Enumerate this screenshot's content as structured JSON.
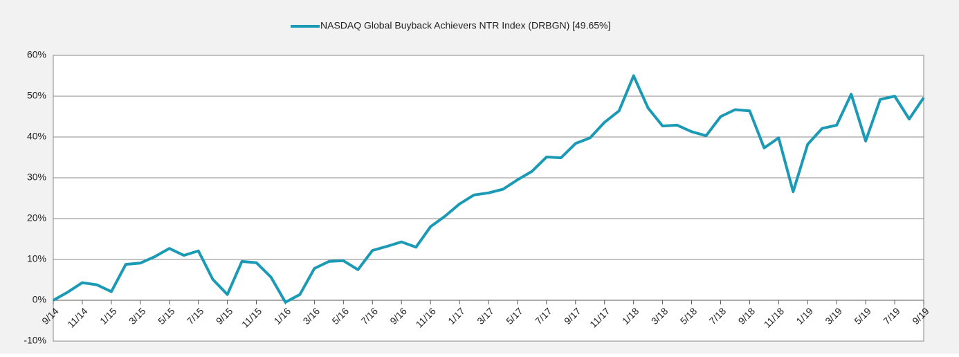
{
  "chart_data": {
    "type": "line",
    "categories": [
      "9/14",
      null,
      "11/14",
      null,
      "1/15",
      null,
      "3/15",
      null,
      "5/15",
      null,
      "7/15",
      null,
      "9/15",
      null,
      "11/15",
      null,
      "1/16",
      null,
      "3/16",
      null,
      "5/16",
      null,
      "7/16",
      null,
      "9/16",
      null,
      "11/16",
      null,
      "1/17",
      null,
      "3/17",
      null,
      "5/17",
      null,
      "7/17",
      null,
      "9/17",
      null,
      "11/17",
      null,
      "1/18",
      null,
      "3/18",
      null,
      "5/18",
      null,
      "7/18",
      null,
      "9/18",
      null,
      "11/18",
      null,
      "1/19",
      null,
      "3/19",
      null,
      "5/19",
      null,
      "7/19",
      null,
      "9/19"
    ],
    "series": [
      {
        "name": "NASDAQ Global Buyback Achievers NTR Index (DRBGN) [49.65%]",
        "color": "#1b9ab6",
        "values": [
          0,
          2,
          4.3,
          3.8,
          2.1,
          8.8,
          9.1,
          10.7,
          12.7,
          11,
          12.1,
          5.1,
          1.4,
          9.5,
          9.2,
          5.7,
          -0.5,
          1.4,
          7.8,
          9.5,
          9.7,
          7.5,
          12.2,
          13.2,
          14.3,
          13,
          18,
          20.6,
          23.6,
          25.8,
          26.3,
          27.2,
          29.5,
          31.6,
          35.1,
          34.9,
          38.4,
          39.8,
          43.6,
          46.4,
          55,
          47.1,
          42.7,
          42.9,
          41.3,
          40.3,
          45,
          46.7,
          46.4,
          37.3,
          39.8,
          26.6,
          38.2,
          42.1,
          42.9,
          50.5,
          39,
          49.2,
          50,
          44.4,
          49.65
        ]
      }
    ],
    "ylim": [
      -10,
      60
    ],
    "yticks": [
      {
        "value": -10,
        "label": "-10%"
      },
      {
        "value": 0,
        "label": "0%"
      },
      {
        "value": 10,
        "label": "10%"
      },
      {
        "value": 20,
        "label": "20%"
      },
      {
        "value": 30,
        "label": "30%"
      },
      {
        "value": 40,
        "label": "40%"
      },
      {
        "value": 50,
        "label": "50%"
      },
      {
        "value": 60,
        "label": "60%"
      }
    ],
    "grid": true,
    "legend": "top"
  }
}
